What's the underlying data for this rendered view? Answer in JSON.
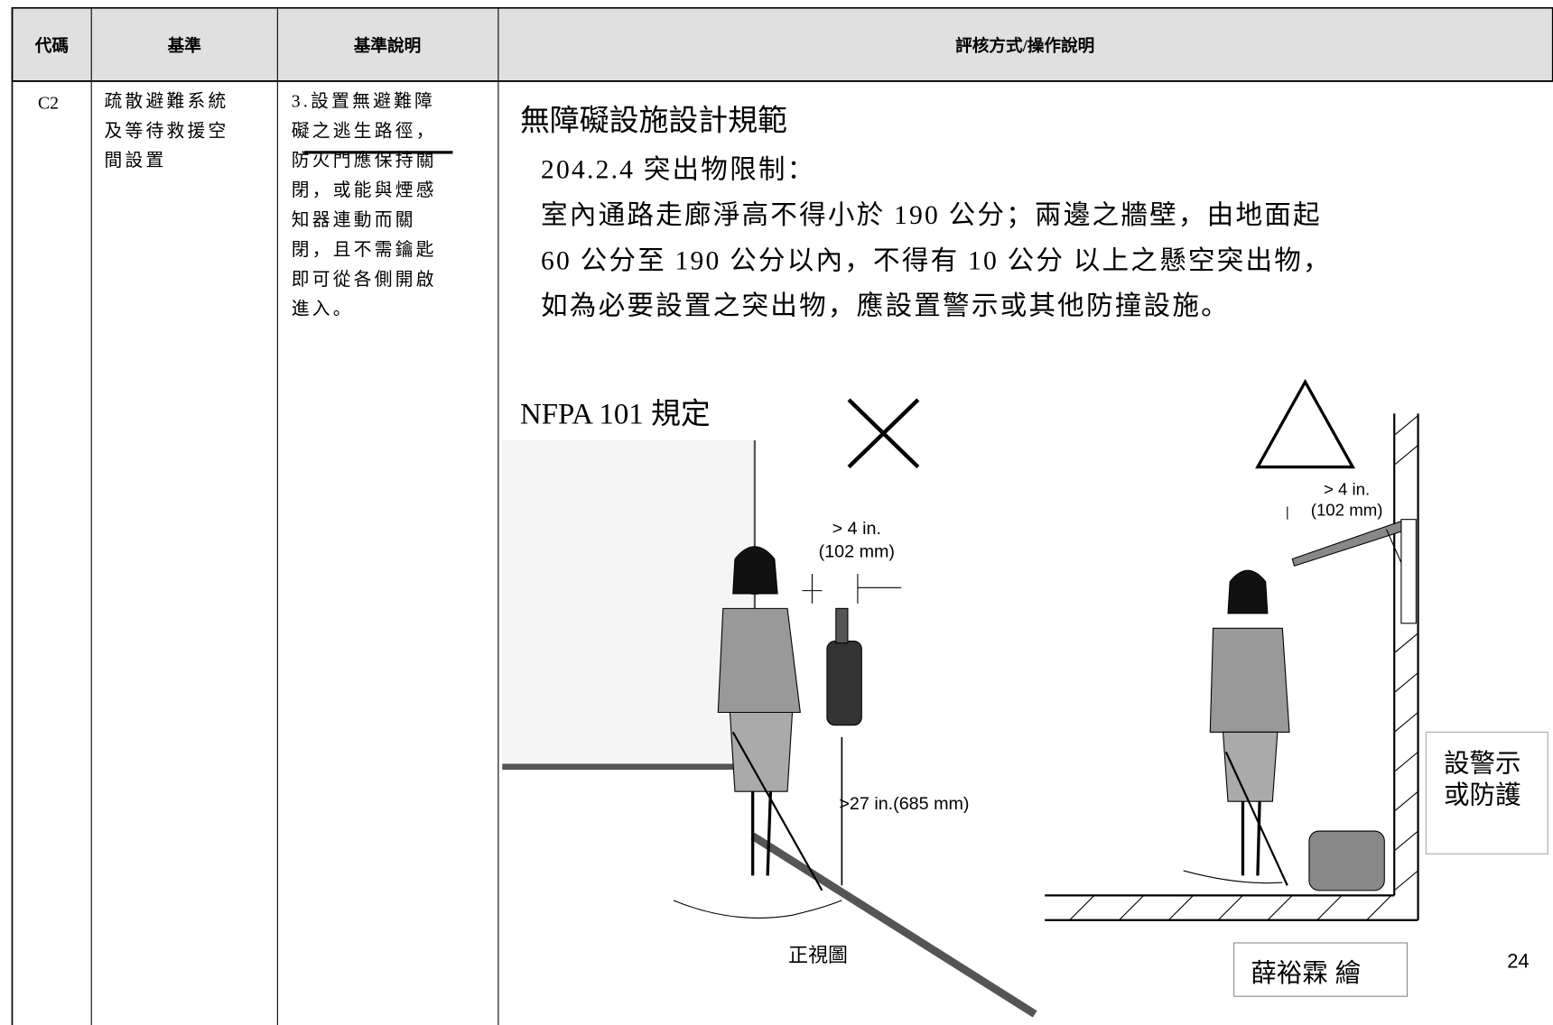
{
  "table": {
    "headers": [
      "代碼",
      "基準",
      "基準說明",
      "評核方式/操作說明"
    ],
    "rows": [
      [
        "C2",
        [
          "疏散避難系統",
          "及等待救援空",
          "間設置"
        ],
        [
          "3.設置無避難障",
          "礙之逃生路徑，",
          "防火門應保持關",
          "閉，或能與煙感",
          "知器連動而關",
          "閉，且不需鑰匙",
          "即可從各側開啟",
          "進入。"
        ]
      ]
    ]
  },
  "evaluation": {
    "title": "無障礙設施設計規範",
    "clause": "204.2.4 突出物限制：",
    "text": [
      "室內通路走廊淨高不得小於 190 公分；兩邊之牆壁，由地面起",
      "60 公分至 190 公分以內，不得有 10 公分 以上之懸空突出物，",
      "如為必要設置之突出物，應設置警示或其他防撞設施。"
    ]
  },
  "figures": {
    "title": "NFPA 101 規定",
    "left": {
      "dim_top": "> 4 in.",
      "dim_top_mm": "(102 mm)",
      "dim_height": ">27 in.(685 mm)",
      "caption": "正視圖"
    },
    "right": {
      "dim_top": "> 4 in.",
      "dim_top_mm": "(102 mm)",
      "note": [
        "設警示",
        "或防護"
      ]
    },
    "credit": "薛裕霖 繪"
  },
  "page_number": "24"
}
